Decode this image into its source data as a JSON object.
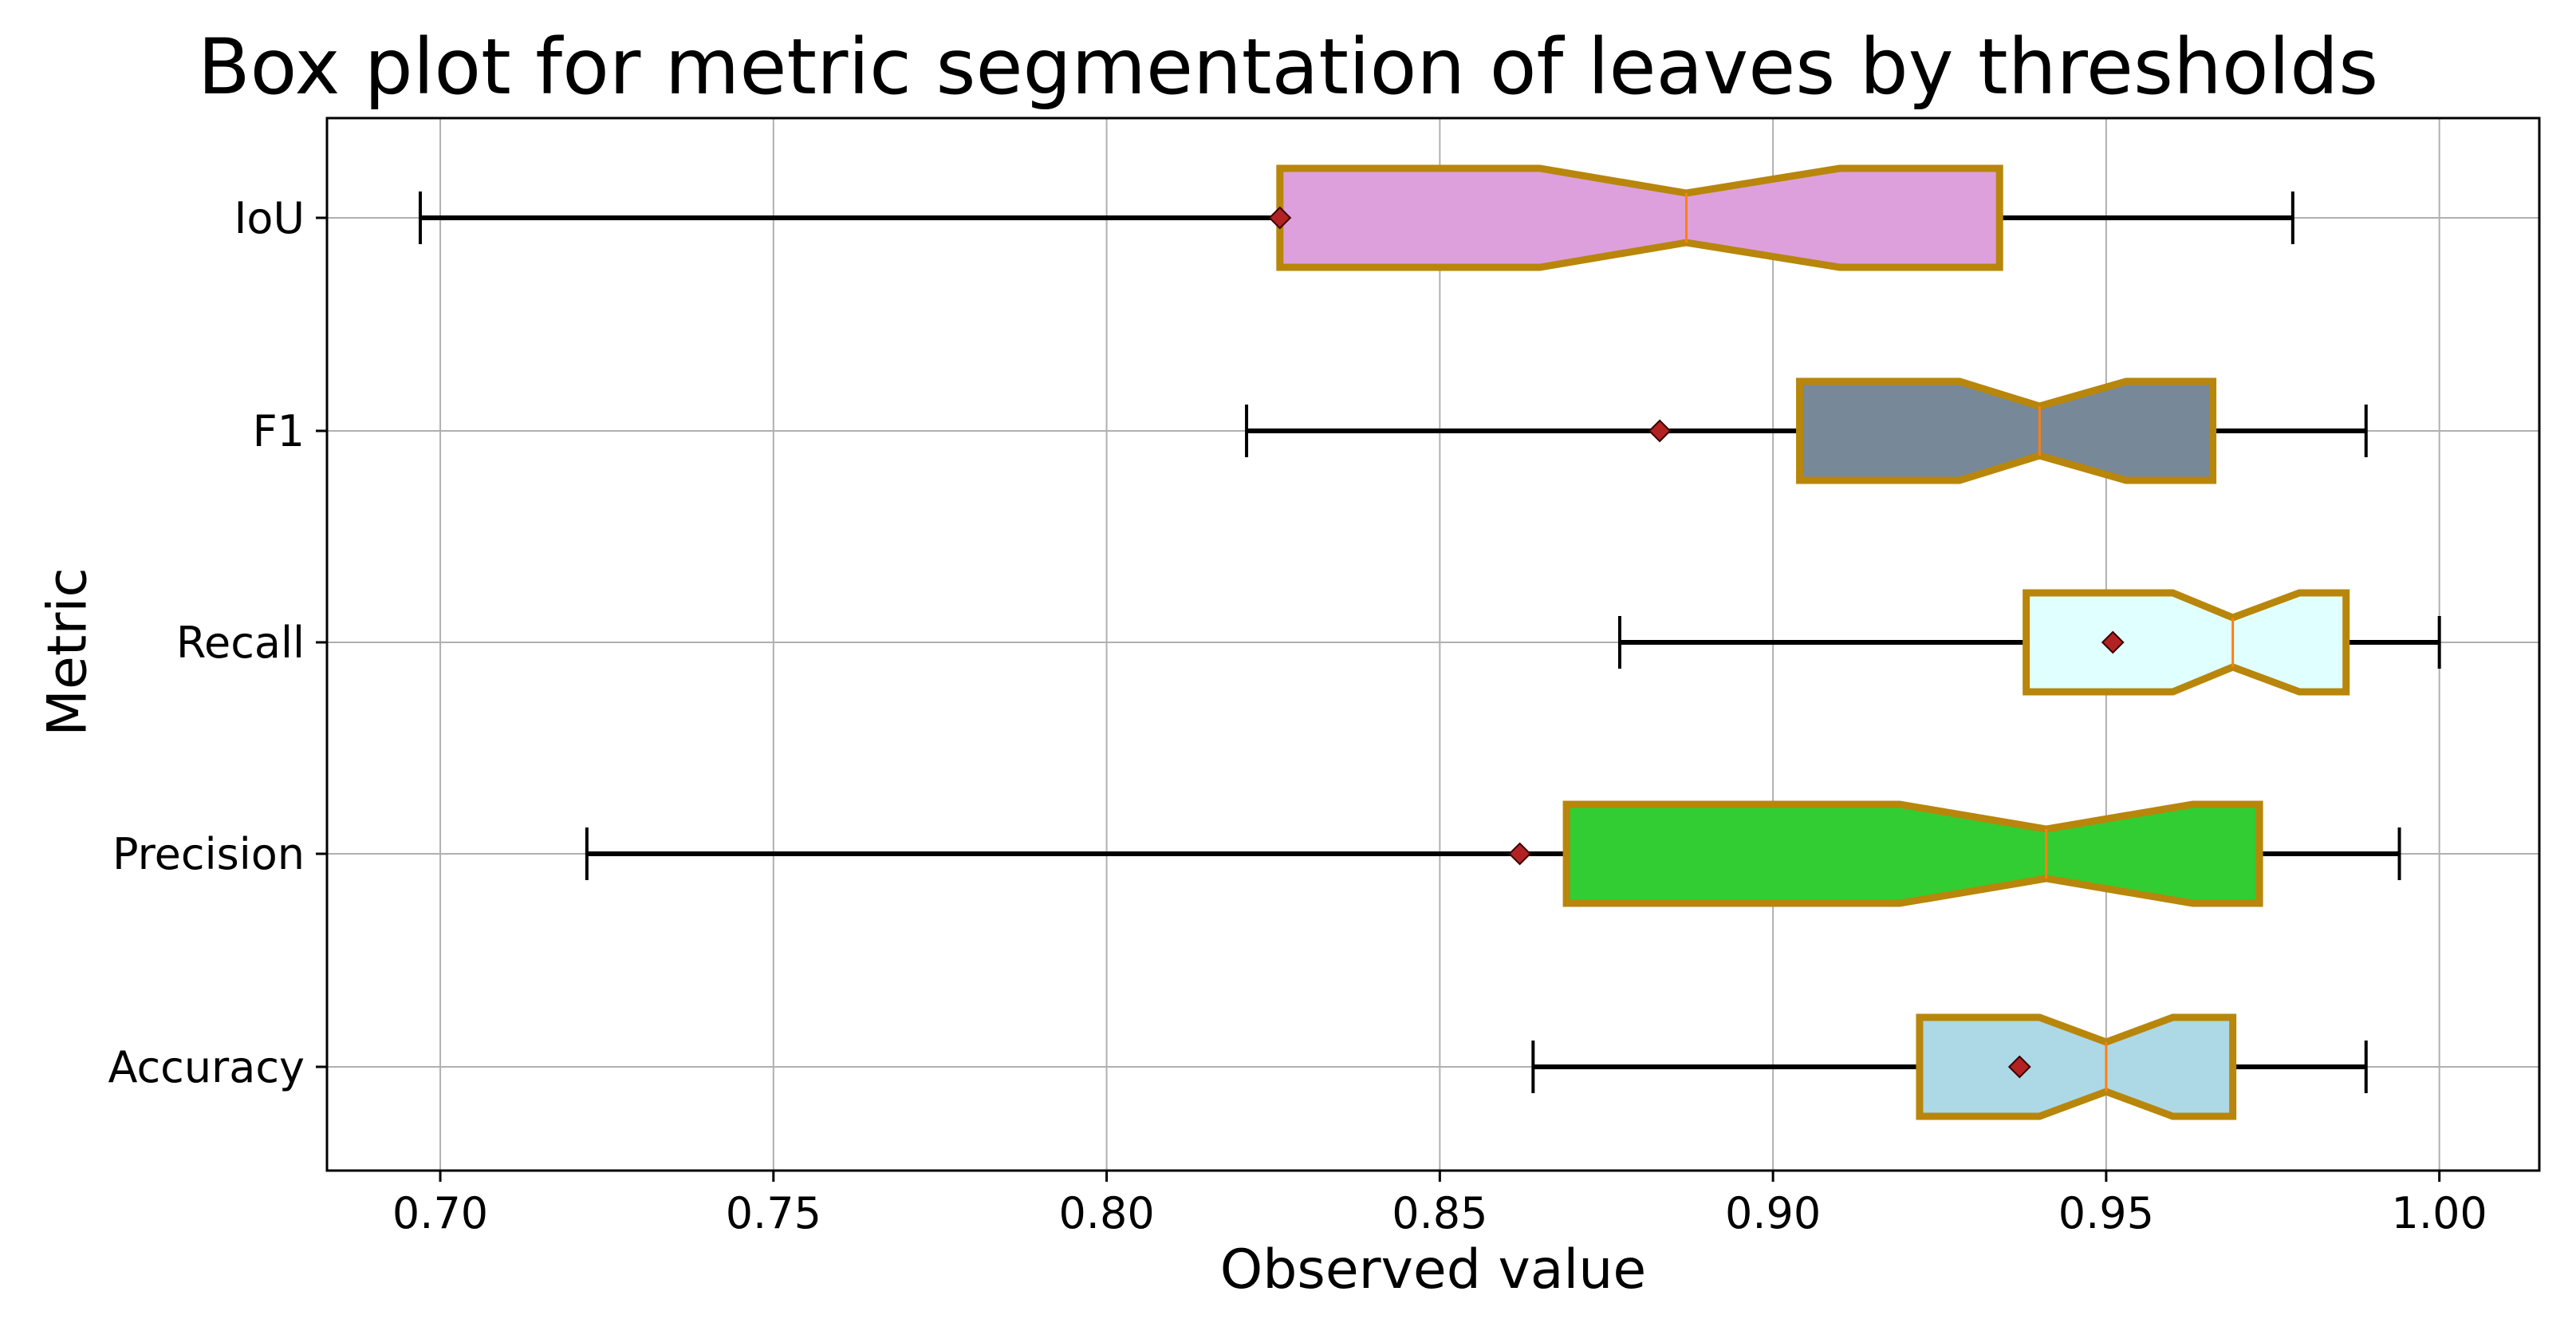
{
  "chart_data": {
    "type": "boxplot",
    "orientation": "horizontal",
    "title": "Box plot for metric segmentation of leaves by thresholds",
    "xlabel": "Observed value",
    "ylabel": "Metric",
    "xlim": [
      0.683,
      1.015
    ],
    "xticks": [
      0.7,
      0.75,
      0.8,
      0.85,
      0.9,
      0.95,
      1.0
    ],
    "xtick_labels": [
      "0.70",
      "0.75",
      "0.80",
      "0.85",
      "0.90",
      "0.95",
      "1.00"
    ],
    "grid": true,
    "notched": true,
    "box_edge_color": "#B8860B",
    "median_color": "#FF7F0E",
    "mean_marker_color": "#B22222",
    "whisker_color": "#000000",
    "categories": [
      "IoU",
      "F1",
      "Recall",
      "Precision",
      "Accuracy"
    ],
    "boxes": [
      {
        "name": "IoU",
        "whisker_low": 0.697,
        "q1": 0.826,
        "median": 0.887,
        "q3": 0.934,
        "whisker_high": 0.978,
        "notch_low": 0.865,
        "notch_high": 0.91,
        "mean": 0.826,
        "color": "#DDA0DD"
      },
      {
        "name": "F1",
        "whisker_low": 0.821,
        "q1": 0.904,
        "median": 0.94,
        "q3": 0.966,
        "whisker_high": 0.989,
        "notch_low": 0.928,
        "notch_high": 0.953,
        "mean": 0.883,
        "color": "#778899"
      },
      {
        "name": "Recall",
        "whisker_low": 0.877,
        "q1": 0.938,
        "median": 0.969,
        "q3": 0.986,
        "whisker_high": 1.0,
        "notch_low": 0.96,
        "notch_high": 0.979,
        "mean": 0.951,
        "color": "#E0FFFF"
      },
      {
        "name": "Precision",
        "whisker_low": 0.722,
        "q1": 0.869,
        "median": 0.941,
        "q3": 0.973,
        "whisker_high": 0.994,
        "notch_low": 0.919,
        "notch_high": 0.963,
        "mean": 0.862,
        "color": "#32CD32"
      },
      {
        "name": "Accuracy",
        "whisker_low": 0.864,
        "q1": 0.922,
        "median": 0.95,
        "q3": 0.969,
        "whisker_high": 0.989,
        "notch_low": 0.94,
        "notch_high": 0.96,
        "mean": 0.937,
        "color": "#ADD8E6"
      }
    ]
  }
}
